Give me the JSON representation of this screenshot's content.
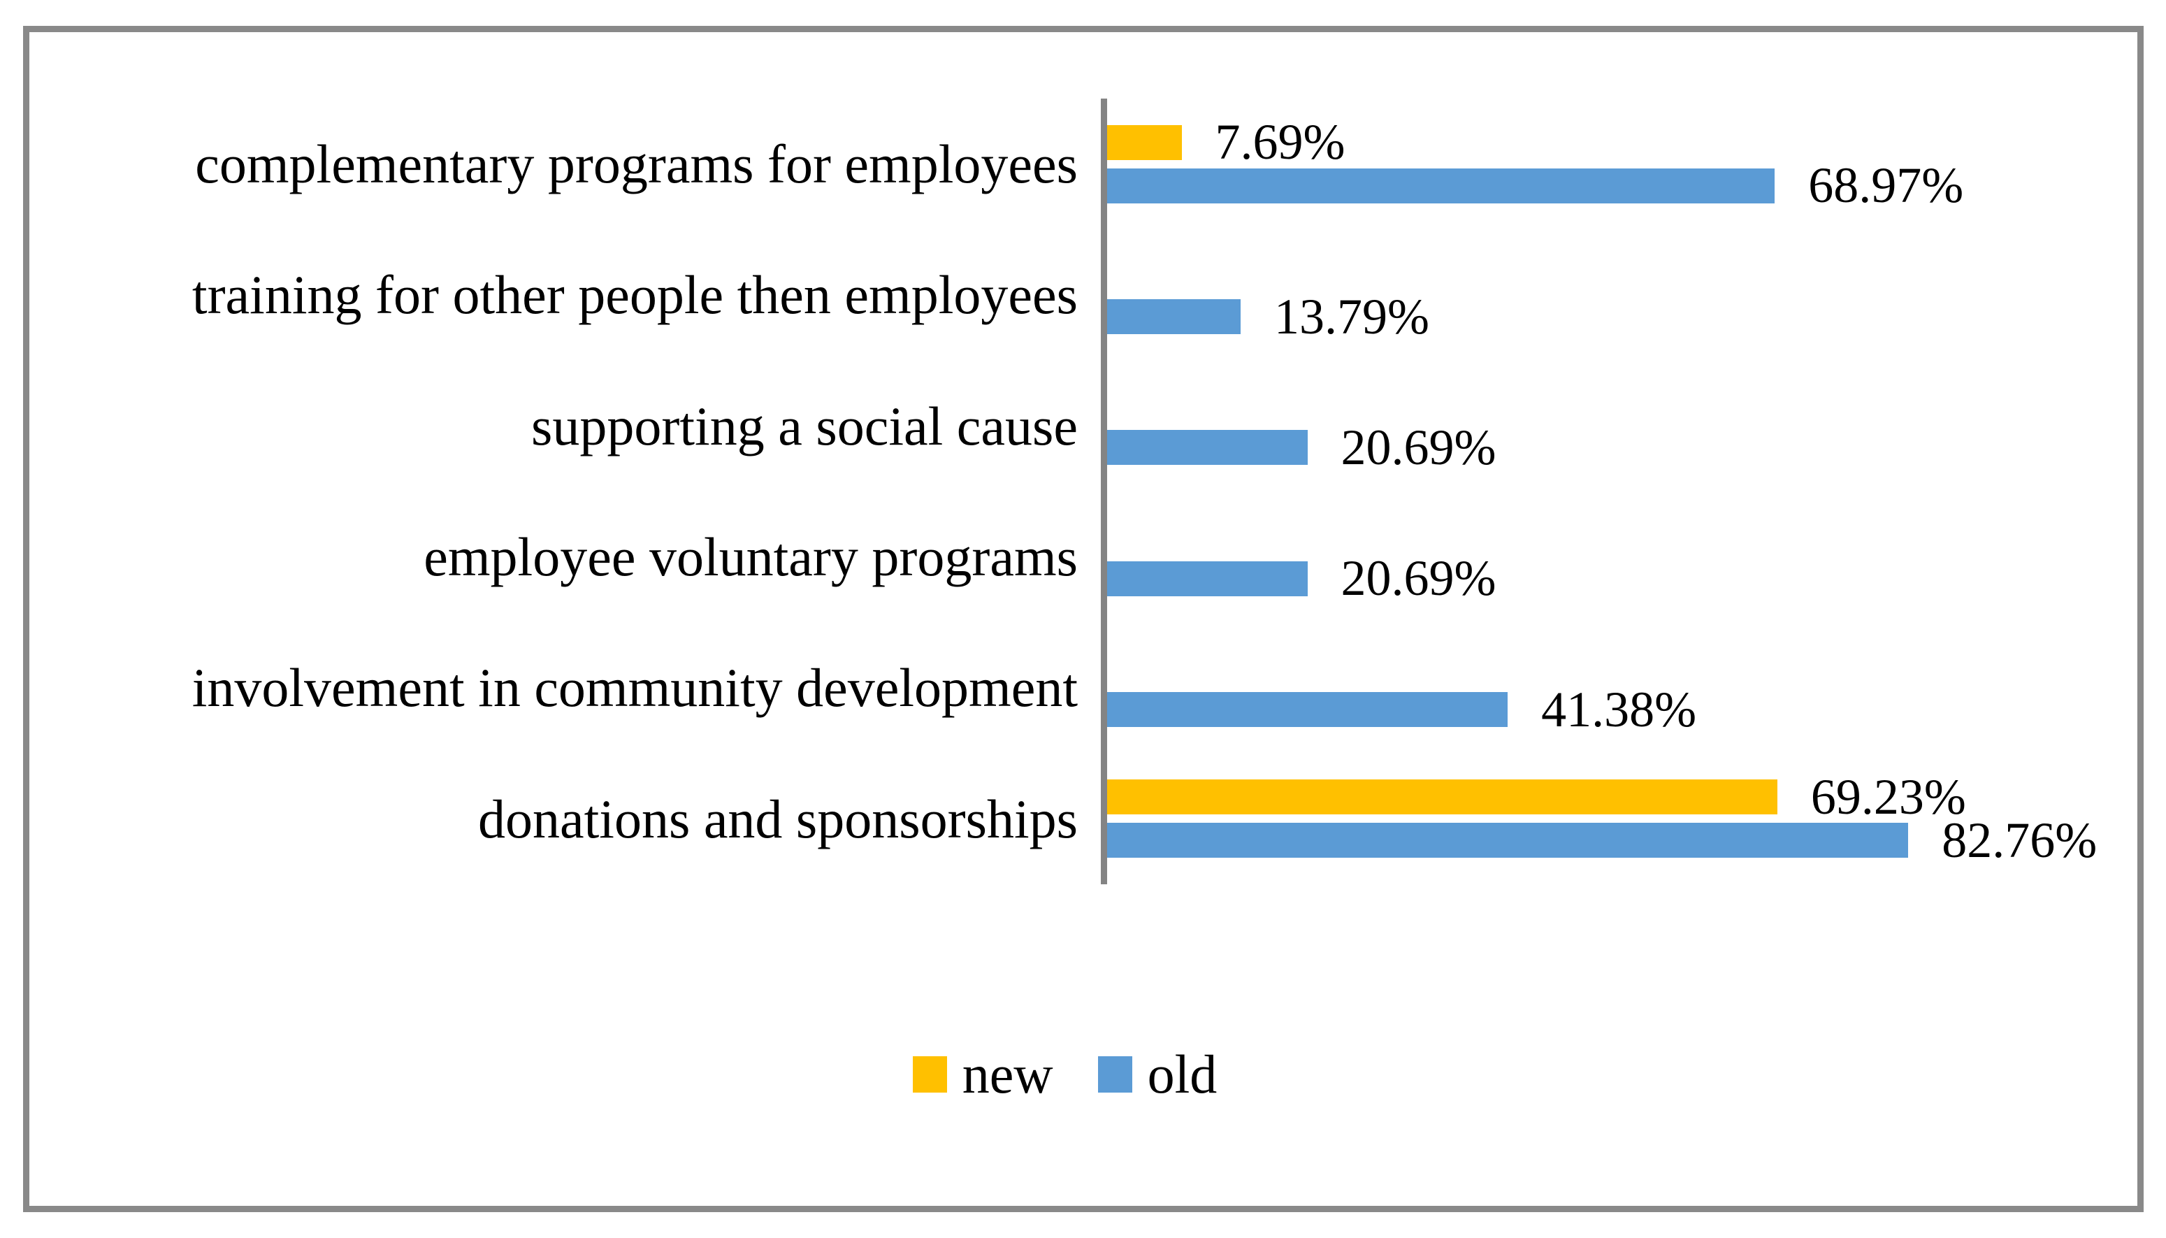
{
  "chart_data": {
    "type": "bar",
    "orientation": "horizontal",
    "title": "",
    "xlabel": "",
    "ylabel": "",
    "categories": [
      "complementary programs for employees",
      "training for other people then employees",
      "supporting a social cause",
      "employee voluntary programs",
      "involvement in community development",
      "donations and sponsorships"
    ],
    "series": [
      {
        "name": "new",
        "color": "#FFC000",
        "values": [
          7.69,
          0,
          0,
          0,
          0,
          69.23
        ],
        "data_labels": [
          "7.69%",
          "",
          "",
          "",
          "",
          "69.23%"
        ]
      },
      {
        "name": "old",
        "color": "#5B9BD5",
        "values": [
          68.97,
          13.79,
          20.69,
          20.69,
          41.38,
          82.76
        ],
        "data_labels": [
          "68.97%",
          "13.79%",
          "20.69%",
          "20.69%",
          "41.38%",
          "82.76%"
        ]
      }
    ],
    "xlim": [
      0,
      100
    ],
    "grid": false,
    "legend_position": "bottom-center",
    "axis_color": "#848484",
    "frame_color": "#898989",
    "text_color": "#000000",
    "background": "#FFFFFF"
  }
}
